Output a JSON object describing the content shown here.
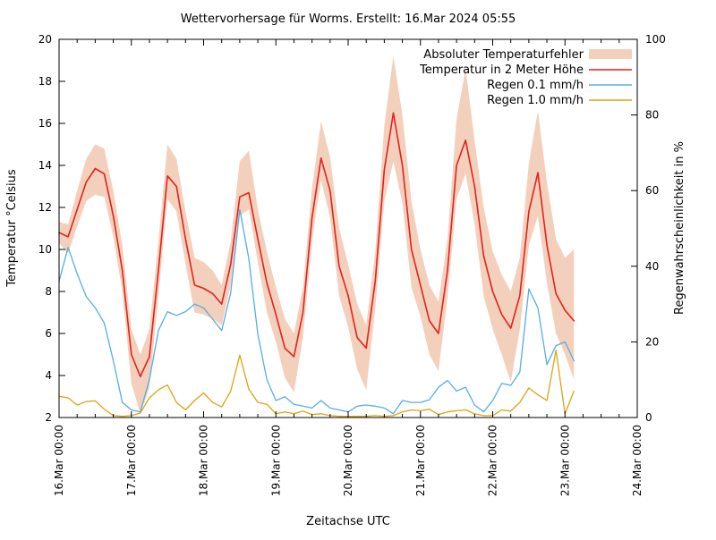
{
  "title": "Wettervorhersage für Worms. Erstellt: 16.Mar 2024 05:55",
  "axes": {
    "x": {
      "label": "Zeitachse UTC",
      "tick_labels": [
        "16.Mar 00:00",
        "17.Mar 00:00",
        "18.Mar 00:00",
        "19.Mar 00:00",
        "20.Mar 00:00",
        "21.Mar 00:00",
        "22.Mar 00:00",
        "23.Mar 00:00",
        "24.Mar 00:00"
      ],
      "minor_tick_hours": 6,
      "span_hours": 192
    },
    "y_left": {
      "label": "Temperatur °Celsius",
      "min": 2,
      "max": 20,
      "tick_step": 2
    },
    "y_right": {
      "label": "Regenwahrscheinlichkeit in %",
      "min": 0,
      "max": 100,
      "tick_step": 20
    }
  },
  "legend": [
    {
      "label": "Absoluter Temperaturfehler",
      "swatch": "band"
    },
    {
      "label": "Temperatur in 2 Meter Höhe",
      "swatch": "line-red"
    },
    {
      "label": "Regen 0.1 mm/h",
      "swatch": "line-blue"
    },
    {
      "label": "Regen 1.0 mm/h",
      "swatch": "line-gold"
    }
  ],
  "colors": {
    "band": "#f2d0bc",
    "temperature": "#e4211b",
    "rain01": "#58ade0",
    "rain10": "#dca313",
    "axis": "#000000",
    "background": "#ffffff"
  },
  "chart_data": {
    "type": "line",
    "title": "Wettervorhersage für Worms. Erstellt: 16.Mar 2024 05:55",
    "xlabel": "Zeitachse UTC",
    "ylabel_left": "Temperatur °Celsius",
    "ylabel_right": "Regenwahrscheinlichkeit in %",
    "ylim_left": [
      2,
      20
    ],
    "ylim_right": [
      0,
      100
    ],
    "x_range_days": [
      "16.Mar 00:00",
      "24.Mar 00:00"
    ],
    "sample_interval_hours": 3,
    "start_hour": 0,
    "series": [
      {
        "name": "Absoluter Temperaturfehler",
        "kind": "band",
        "axis": "left",
        "low": [
          10.3,
          9.8,
          11.1,
          12.3,
          12.6,
          12.5,
          10.6,
          8.0,
          3.6,
          2.2,
          3.4,
          7.8,
          12.4,
          11.8,
          9.3,
          7.0,
          6.9,
          6.7,
          6.4,
          8.3,
          11.6,
          11.9,
          9.4,
          7.0,
          5.6,
          3.9,
          3.2,
          5.8,
          10.4,
          13.3,
          11.5,
          7.8,
          6.3,
          4.3,
          3.3,
          7.2,
          12.3,
          14.2,
          12.2,
          8.2,
          6.8,
          5.0,
          4.2,
          7.7,
          12.4,
          13.6,
          11.2,
          7.8,
          6.2,
          5.0,
          3.7,
          6.2,
          10.2,
          11.6,
          8.4,
          6.0,
          5.0,
          3.8
        ],
        "high": [
          11.3,
          11.2,
          12.8,
          14.3,
          15.0,
          14.8,
          12.8,
          10.2,
          6.2,
          5.0,
          6.2,
          10.4,
          15.0,
          14.3,
          11.8,
          9.6,
          9.4,
          9.0,
          8.3,
          10.4,
          14.2,
          14.7,
          11.9,
          9.9,
          8.2,
          6.7,
          6.0,
          8.2,
          12.9,
          16.1,
          14.4,
          11.0,
          9.3,
          7.4,
          6.4,
          9.9,
          15.9,
          19.2,
          16.4,
          12.3,
          10.0,
          8.3,
          7.5,
          10.5,
          16.2,
          18.6,
          15.2,
          12.0,
          9.9,
          8.8,
          8.0,
          9.6,
          14.1,
          16.6,
          13.2,
          10.5,
          9.6,
          10.0
        ]
      },
      {
        "name": "Temperatur in 2 Meter Höhe",
        "kind": "line",
        "axis": "left",
        "values": [
          10.8,
          10.6,
          11.9,
          13.2,
          13.85,
          13.6,
          11.6,
          9.0,
          5.0,
          3.95,
          4.9,
          9.0,
          13.5,
          13.0,
          10.5,
          8.3,
          8.15,
          7.9,
          7.4,
          9.3,
          12.5,
          12.7,
          10.5,
          8.4,
          6.9,
          5.3,
          4.9,
          7.0,
          11.5,
          14.35,
          12.8,
          9.2,
          7.8,
          5.8,
          5.3,
          8.5,
          13.8,
          16.5,
          14.0,
          10.0,
          8.3,
          6.6,
          6.0,
          9.0,
          14.0,
          15.2,
          13.0,
          9.7,
          8.0,
          6.9,
          6.25,
          7.8,
          11.8,
          13.65,
          10.2,
          7.9,
          7.1,
          6.6
        ]
      },
      {
        "name": "Regen 0.1 mm/h",
        "kind": "line",
        "axis": "right",
        "values": [
          36,
          45,
          38,
          32,
          29,
          25,
          15,
          4,
          2,
          1.5,
          10,
          23,
          28,
          27,
          28,
          30,
          29,
          26,
          23,
          33,
          55,
          42,
          22,
          10,
          4.5,
          5.5,
          3.5,
          3,
          2.5,
          4.5,
          2.5,
          2,
          1.5,
          3,
          3.3,
          3,
          2.5,
          1,
          4.5,
          4,
          4,
          4.7,
          8,
          9.8,
          7,
          8,
          3.3,
          1.5,
          4.5,
          9,
          8.5,
          12,
          34,
          29,
          14,
          19,
          20,
          15
        ]
      },
      {
        "name": "Regen 1.0 mm/h",
        "kind": "line",
        "axis": "right",
        "values": [
          5.6,
          5.2,
          3.3,
          4.2,
          4.4,
          2.2,
          0.5,
          0.3,
          0.5,
          1.2,
          5.2,
          7.3,
          8.6,
          4,
          2,
          4.5,
          6.5,
          4,
          2.8,
          7,
          16.5,
          7.5,
          4,
          3.5,
          1,
          1.5,
          1,
          1.7,
          0.8,
          1,
          0.5,
          0.3,
          0.3,
          0.3,
          0.3,
          0.5,
          0.3,
          0.5,
          1.5,
          2,
          1.8,
          2.2,
          0.8,
          1.5,
          1.8,
          2,
          1,
          0.5,
          0.5,
          2,
          1.7,
          4,
          7.8,
          6,
          4.5,
          17.8,
          1,
          7
        ]
      }
    ]
  }
}
